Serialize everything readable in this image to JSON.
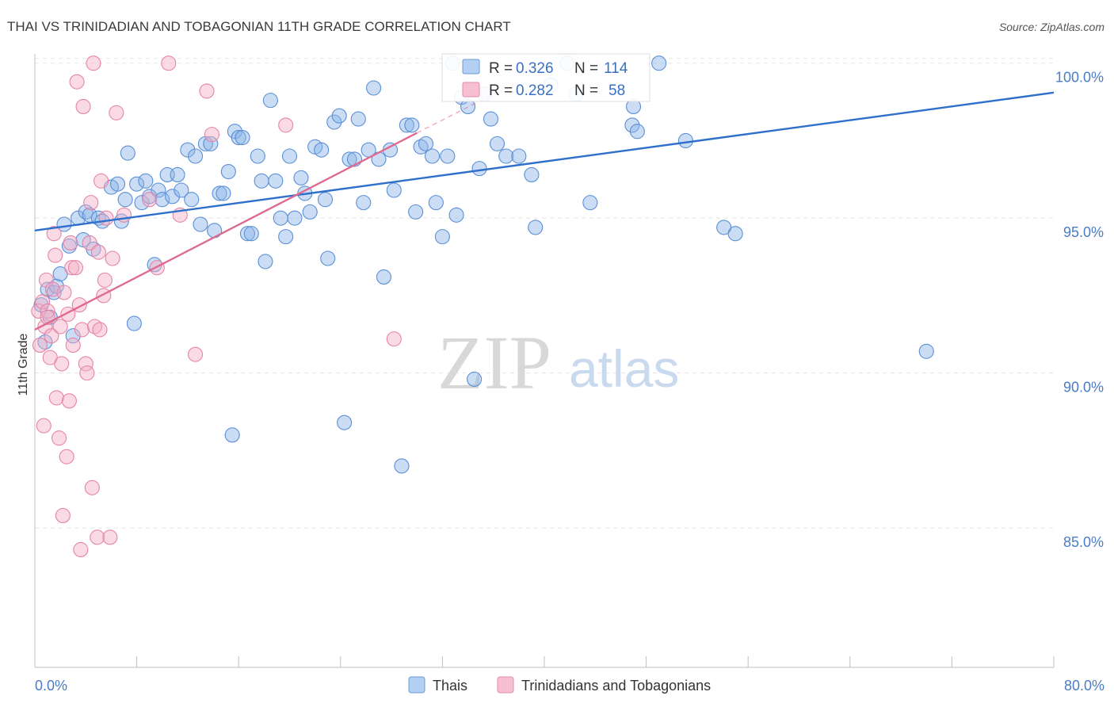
{
  "chart_data": {
    "type": "scatter",
    "title": "THAI VS TRINIDADIAN AND TOBAGONIAN 11TH GRADE CORRELATION CHART",
    "source": "Source: ZipAtlas.com",
    "xlabel": "",
    "ylabel": "11th Grade",
    "xlim": [
      0,
      80
    ],
    "ylim": [
      80.5,
      100.3
    ],
    "x_ticks": [
      0,
      8,
      16,
      24,
      32,
      40,
      48,
      56,
      64,
      72,
      80
    ],
    "x_tick_labels": {
      "min": "0.0%",
      "max": "80.0%"
    },
    "y_ticks": [
      85,
      90,
      95,
      100
    ],
    "y_tick_labels": [
      "85.0%",
      "90.0%",
      "95.0%",
      "100.0%"
    ],
    "grid": true,
    "watermark": {
      "zip": "ZIP",
      "atlas": "atlas"
    },
    "legend": {
      "position": "top-center",
      "entries": [
        {
          "r_label": "R =",
          "r_value": "0.326",
          "n_label": "N =",
          "n_value": "114"
        },
        {
          "r_label": "R =",
          "r_value": "0.282",
          "n_label": "N =",
          "n_value": "58"
        }
      ]
    },
    "series": [
      {
        "name": "Thais",
        "color": "#8ab4e8",
        "edge": "#5b8fd6",
        "trend_color": "#2f6fcc",
        "trend": {
          "x0": 0,
          "y0": 94.6,
          "x1": 80,
          "y1": 99.05
        },
        "points": [
          [
            0.5,
            92.2
          ],
          [
            0.8,
            91.0
          ],
          [
            1.0,
            92.7
          ],
          [
            1.2,
            91.8
          ],
          [
            1.5,
            92.6
          ],
          [
            1.7,
            92.8
          ],
          [
            2.0,
            93.2
          ],
          [
            2.3,
            94.8
          ],
          [
            2.7,
            94.1
          ],
          [
            3.0,
            91.2
          ],
          [
            3.4,
            95.0
          ],
          [
            3.8,
            94.3
          ],
          [
            4.0,
            95.2
          ],
          [
            4.3,
            95.1
          ],
          [
            4.6,
            94.0
          ],
          [
            5.0,
            95.0
          ],
          [
            5.3,
            94.9
          ],
          [
            6.0,
            96.0
          ],
          [
            6.5,
            96.1
          ],
          [
            6.8,
            94.9
          ],
          [
            7.1,
            95.6
          ],
          [
            7.3,
            97.1
          ],
          [
            7.8,
            91.6
          ],
          [
            8.0,
            96.1
          ],
          [
            8.4,
            95.5
          ],
          [
            8.7,
            96.2
          ],
          [
            9.0,
            95.7
          ],
          [
            9.4,
            93.5
          ],
          [
            9.7,
            95.9
          ],
          [
            10.0,
            95.6
          ],
          [
            10.4,
            96.4
          ],
          [
            10.8,
            95.7
          ],
          [
            11.2,
            96.4
          ],
          [
            11.5,
            95.9
          ],
          [
            12.0,
            97.2
          ],
          [
            12.3,
            95.6
          ],
          [
            12.6,
            97.0
          ],
          [
            13.0,
            94.8
          ],
          [
            13.4,
            97.4
          ],
          [
            13.8,
            97.4
          ],
          [
            14.1,
            94.6
          ],
          [
            14.5,
            95.8
          ],
          [
            14.8,
            95.8
          ],
          [
            15.2,
            96.5
          ],
          [
            15.5,
            88.0
          ],
          [
            15.7,
            97.8
          ],
          [
            16.0,
            97.6
          ],
          [
            16.3,
            97.6
          ],
          [
            16.7,
            94.5
          ],
          [
            17.0,
            94.5
          ],
          [
            17.5,
            97.0
          ],
          [
            17.8,
            96.2
          ],
          [
            18.1,
            93.6
          ],
          [
            18.5,
            98.8
          ],
          [
            18.9,
            96.2
          ],
          [
            19.3,
            95.0
          ],
          [
            19.7,
            94.4
          ],
          [
            20.0,
            97.0
          ],
          [
            20.4,
            95.0
          ],
          [
            20.9,
            96.3
          ],
          [
            21.2,
            95.8
          ],
          [
            21.6,
            95.2
          ],
          [
            22.0,
            97.3
          ],
          [
            22.5,
            97.2
          ],
          [
            22.8,
            95.6
          ],
          [
            23.0,
            93.7
          ],
          [
            23.5,
            98.1
          ],
          [
            23.9,
            98.3
          ],
          [
            24.3,
            88.4
          ],
          [
            24.7,
            96.9
          ],
          [
            25.1,
            96.9
          ],
          [
            25.4,
            98.2
          ],
          [
            25.8,
            95.5
          ],
          [
            26.2,
            97.2
          ],
          [
            26.6,
            99.2
          ],
          [
            27.0,
            96.9
          ],
          [
            27.4,
            93.1
          ],
          [
            27.9,
            97.2
          ],
          [
            28.2,
            95.9
          ],
          [
            28.8,
            87.0
          ],
          [
            29.2,
            98.0
          ],
          [
            29.6,
            98.0
          ],
          [
            29.9,
            95.2
          ],
          [
            30.3,
            97.3
          ],
          [
            30.7,
            97.4
          ],
          [
            31.2,
            97.0
          ],
          [
            31.5,
            95.5
          ],
          [
            32.0,
            94.4
          ],
          [
            32.4,
            97.0
          ],
          [
            32.8,
            100.0
          ],
          [
            33.1,
            95.1
          ],
          [
            33.5,
            98.9
          ],
          [
            34.0,
            98.6
          ],
          [
            34.5,
            89.8
          ],
          [
            34.9,
            96.6
          ],
          [
            35.3,
            99.0
          ],
          [
            35.8,
            98.2
          ],
          [
            36.3,
            97.4
          ],
          [
            37.0,
            97.0
          ],
          [
            38.0,
            97.0
          ],
          [
            39.0,
            96.4
          ],
          [
            39.3,
            94.7
          ],
          [
            40.5,
            99.3
          ],
          [
            41.8,
            100.0
          ],
          [
            42.5,
            99.0
          ],
          [
            43.6,
            95.5
          ],
          [
            46.9,
            98.0
          ],
          [
            47.3,
            97.8
          ],
          [
            49.0,
            100.0
          ],
          [
            51.1,
            97.5
          ],
          [
            54.1,
            94.7
          ],
          [
            55.0,
            94.5
          ],
          [
            70.0,
            90.7
          ],
          [
            47.0,
            98.6
          ]
        ]
      },
      {
        "name": "Trinidadians and Tobagonians",
        "color": "#f4afc6",
        "edge": "#e584a6",
        "trend_color": "#e0698f",
        "trend": {
          "x0": 0,
          "y0": 91.4,
          "x1": 30.0,
          "y1": 97.75
        },
        "trend_ext": {
          "x0": 30.0,
          "y0": 97.75,
          "x1": 36.0,
          "y1": 99.0
        },
        "points": [
          [
            0.3,
            92.0
          ],
          [
            0.4,
            90.9
          ],
          [
            0.6,
            92.3
          ],
          [
            0.7,
            88.3
          ],
          [
            0.8,
            91.5
          ],
          [
            0.9,
            93.0
          ],
          [
            1.0,
            92.0
          ],
          [
            1.2,
            90.5
          ],
          [
            1.3,
            91.2
          ],
          [
            1.4,
            92.7
          ],
          [
            1.6,
            93.8
          ],
          [
            1.7,
            89.2
          ],
          [
            1.9,
            87.9
          ],
          [
            2.0,
            91.5
          ],
          [
            2.1,
            90.3
          ],
          [
            2.2,
            85.4
          ],
          [
            2.5,
            87.3
          ],
          [
            2.6,
            91.9
          ],
          [
            2.7,
            89.1
          ],
          [
            2.9,
            93.4
          ],
          [
            3.0,
            90.9
          ],
          [
            3.2,
            93.4
          ],
          [
            3.3,
            99.4
          ],
          [
            3.5,
            92.2
          ],
          [
            3.7,
            91.4
          ],
          [
            3.8,
            98.6
          ],
          [
            4.0,
            90.3
          ],
          [
            4.1,
            90.0
          ],
          [
            4.3,
            94.2
          ],
          [
            4.4,
            95.5
          ],
          [
            4.5,
            86.3
          ],
          [
            4.7,
            91.5
          ],
          [
            4.9,
            84.7
          ],
          [
            5.0,
            93.9
          ],
          [
            5.1,
            91.4
          ],
          [
            5.2,
            96.2
          ],
          [
            5.4,
            92.5
          ],
          [
            5.6,
            95.0
          ],
          [
            5.9,
            84.7
          ],
          [
            6.1,
            93.7
          ],
          [
            6.4,
            98.4
          ],
          [
            7.0,
            95.1
          ],
          [
            9.0,
            95.6
          ],
          [
            9.6,
            93.4
          ],
          [
            10.5,
            100.0
          ],
          [
            11.4,
            95.1
          ],
          [
            12.6,
            90.6
          ],
          [
            13.5,
            99.1
          ],
          [
            13.9,
            97.7
          ],
          [
            19.7,
            98.0
          ],
          [
            28.2,
            91.1
          ],
          [
            3.6,
            84.3
          ],
          [
            4.6,
            100.0
          ],
          [
            1.0,
            91.8
          ],
          [
            2.3,
            92.6
          ],
          [
            5.5,
            93.0
          ],
          [
            1.5,
            94.5
          ],
          [
            2.8,
            94.2
          ]
        ]
      }
    ]
  }
}
